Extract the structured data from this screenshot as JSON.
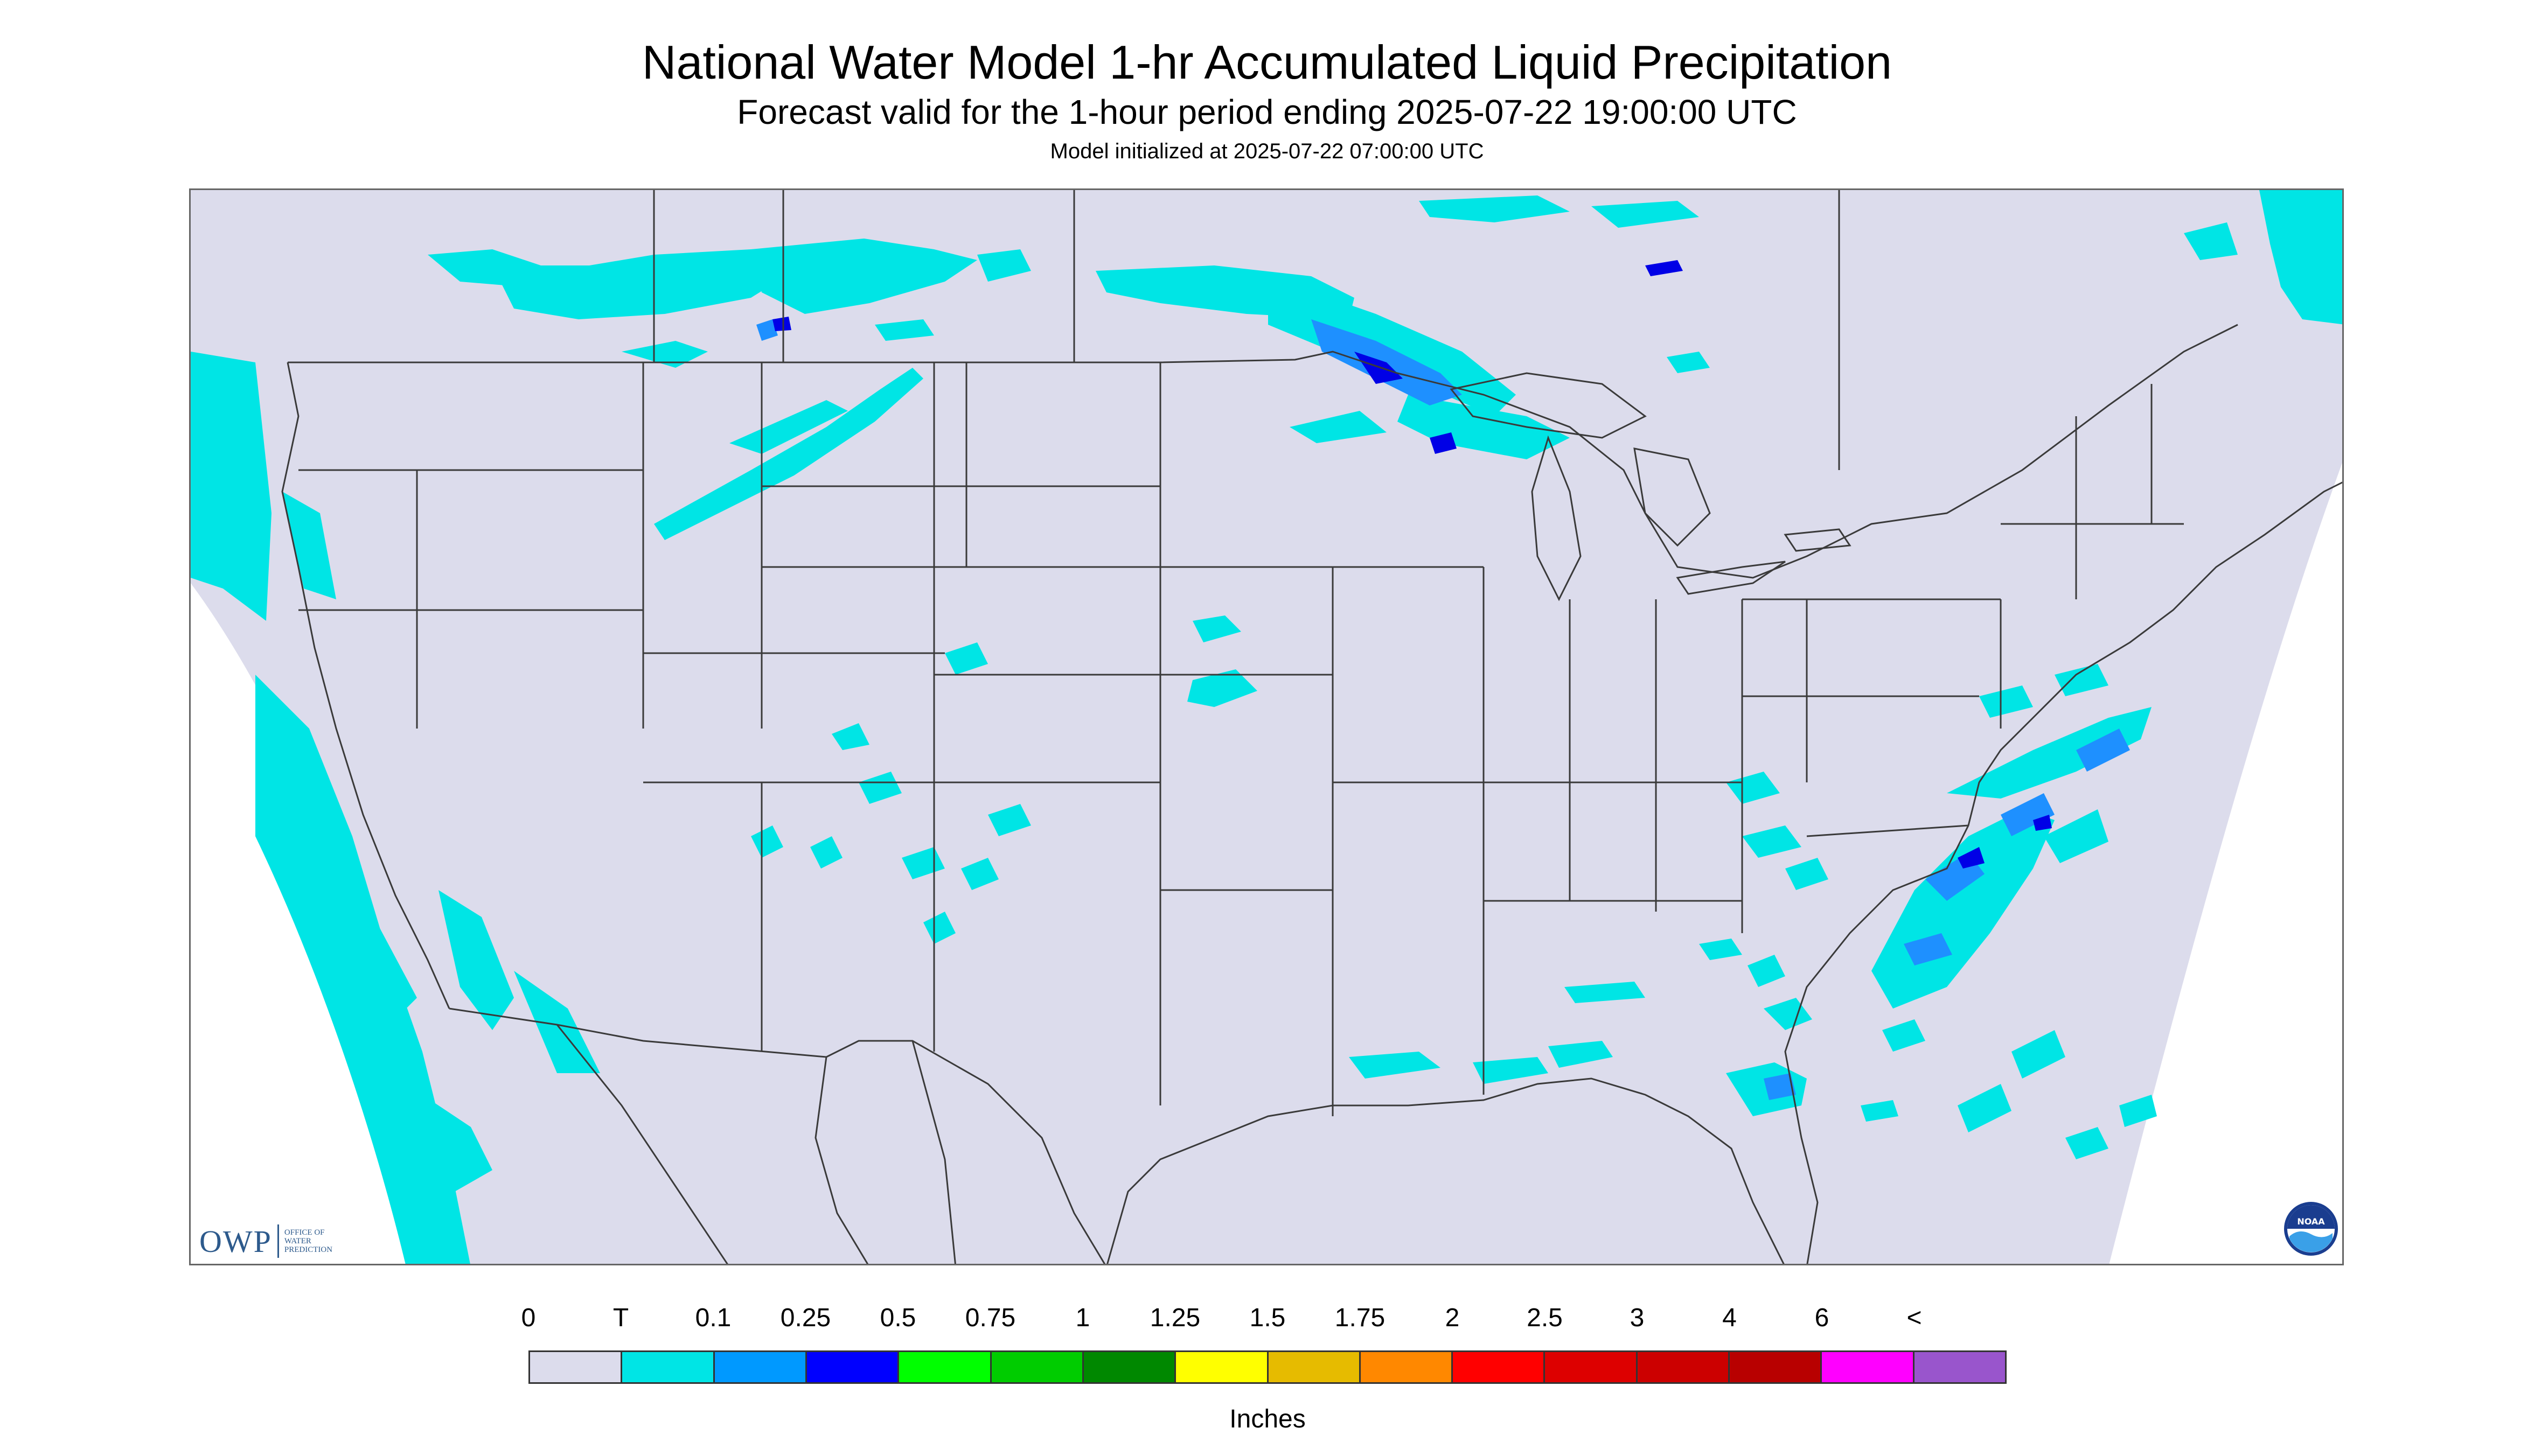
{
  "title": "National Water Model 1-hr Accumulated Liquid Precipitation",
  "subtitle": "Forecast valid for the 1-hour period ending 2025-07-22 19:00:00 UTC",
  "init": "Model initialized at 2025-07-22 07:00:00 UTC",
  "colors": {
    "background": "#dcdcec",
    "outside": "#ffffff",
    "boundary": "#3a3a3a",
    "trace": "#00e5e5",
    "light": "#1e90ff",
    "medium": "#0000e6"
  },
  "owp": {
    "mark": "OWP",
    "line1": "Office of",
    "line2": "Water",
    "line3": "Prediction"
  },
  "noaa": {
    "text": "NOAA",
    "icon": "noaa-icon"
  },
  "legend": {
    "unit": "Inches",
    "labels": [
      "0",
      "T",
      "0.1",
      "0.25",
      "0.5",
      "0.75",
      "1",
      "1.25",
      "1.5",
      "1.75",
      "2",
      "2.5",
      "3",
      "4",
      "6",
      "<"
    ],
    "colors": [
      "#dcdcec",
      "#00e5e5",
      "#0099ff",
      "#0000ff",
      "#00ff00",
      "#00cc00",
      "#008800",
      "#ffff00",
      "#e6bb00",
      "#ff8800",
      "#ff0000",
      "#dd0000",
      "#cc0000",
      "#b80000",
      "#ff00ff",
      "#9955cc"
    ]
  },
  "precip_regions": [
    {
      "name": "pacific-northwest",
      "level": "trace"
    },
    {
      "name": "northern-rockies",
      "level": "trace"
    },
    {
      "name": "upper-midwest",
      "level": "light"
    },
    {
      "name": "lake-superior",
      "level": "medium"
    },
    {
      "name": "southwest-monsoon",
      "level": "trace"
    },
    {
      "name": "gulf-coast",
      "level": "trace"
    },
    {
      "name": "florida",
      "level": "light"
    },
    {
      "name": "western-atlantic",
      "level": "light"
    },
    {
      "name": "eastern-pacific",
      "level": "trace"
    }
  ]
}
